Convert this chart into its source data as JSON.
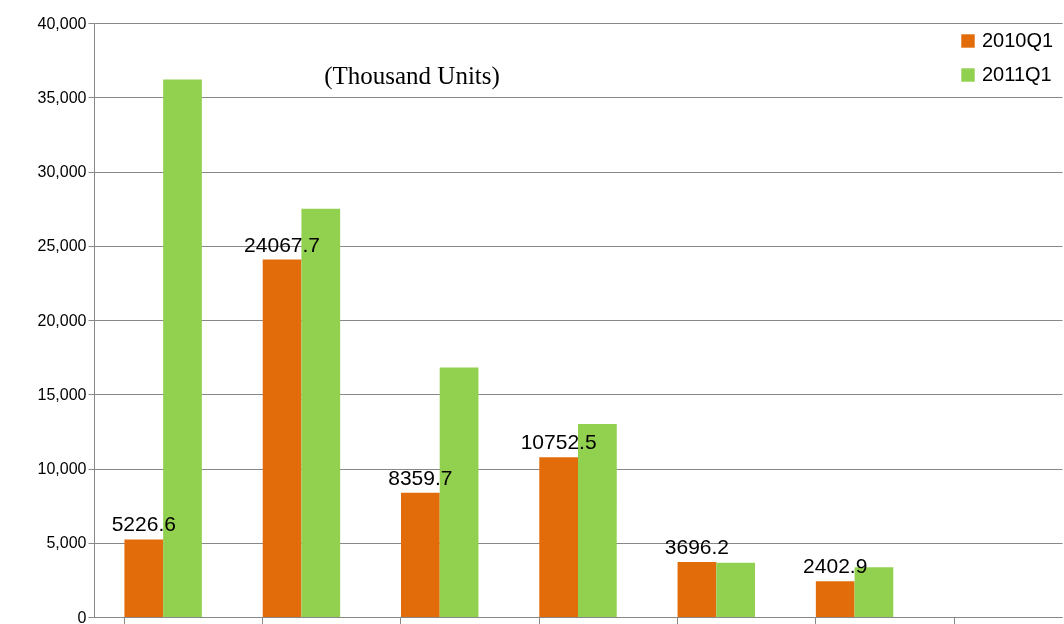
{
  "chart_data": {
    "type": "bar",
    "annotations": [
      "(Thousand Units)"
    ],
    "categories": [
      null,
      null,
      null,
      null,
      null,
      null,
      null
    ],
    "series": [
      {
        "name": "2010Q1",
        "color": "#e36c0a",
        "values": [
          5226.6,
          24067.7,
          8359.7,
          10752.5,
          3696.2,
          2402.9,
          null
        ],
        "value_labels": [
          "5226.6",
          "24067.7",
          "8359.7",
          "10752.5",
          "3696.2",
          "2402.9",
          null
        ]
      },
      {
        "name": "2011Q1",
        "color": "#92d050",
        "values": [
          36200,
          27500,
          16800,
          13000,
          3650,
          3350,
          null
        ]
      }
    ],
    "ylim": [
      0,
      40000
    ],
    "yticks": [
      0,
      {
        "value": 5000,
        "label": "5,000"
      },
      {
        "value": 10000,
        "label": "10,000"
      },
      {
        "value": 15000,
        "label": "15,000"
      },
      {
        "value": 20000,
        "label": "20,000"
      },
      {
        "value": 25000,
        "label": "25,000"
      },
      {
        "value": 30000,
        "label": "30,000"
      },
      {
        "value": 35000,
        "label": "35,000"
      },
      {
        "value": 40000,
        "label": "40,000"
      }
    ],
    "grid": "y",
    "legend": "top right",
    "tick_labels": "y"
  }
}
